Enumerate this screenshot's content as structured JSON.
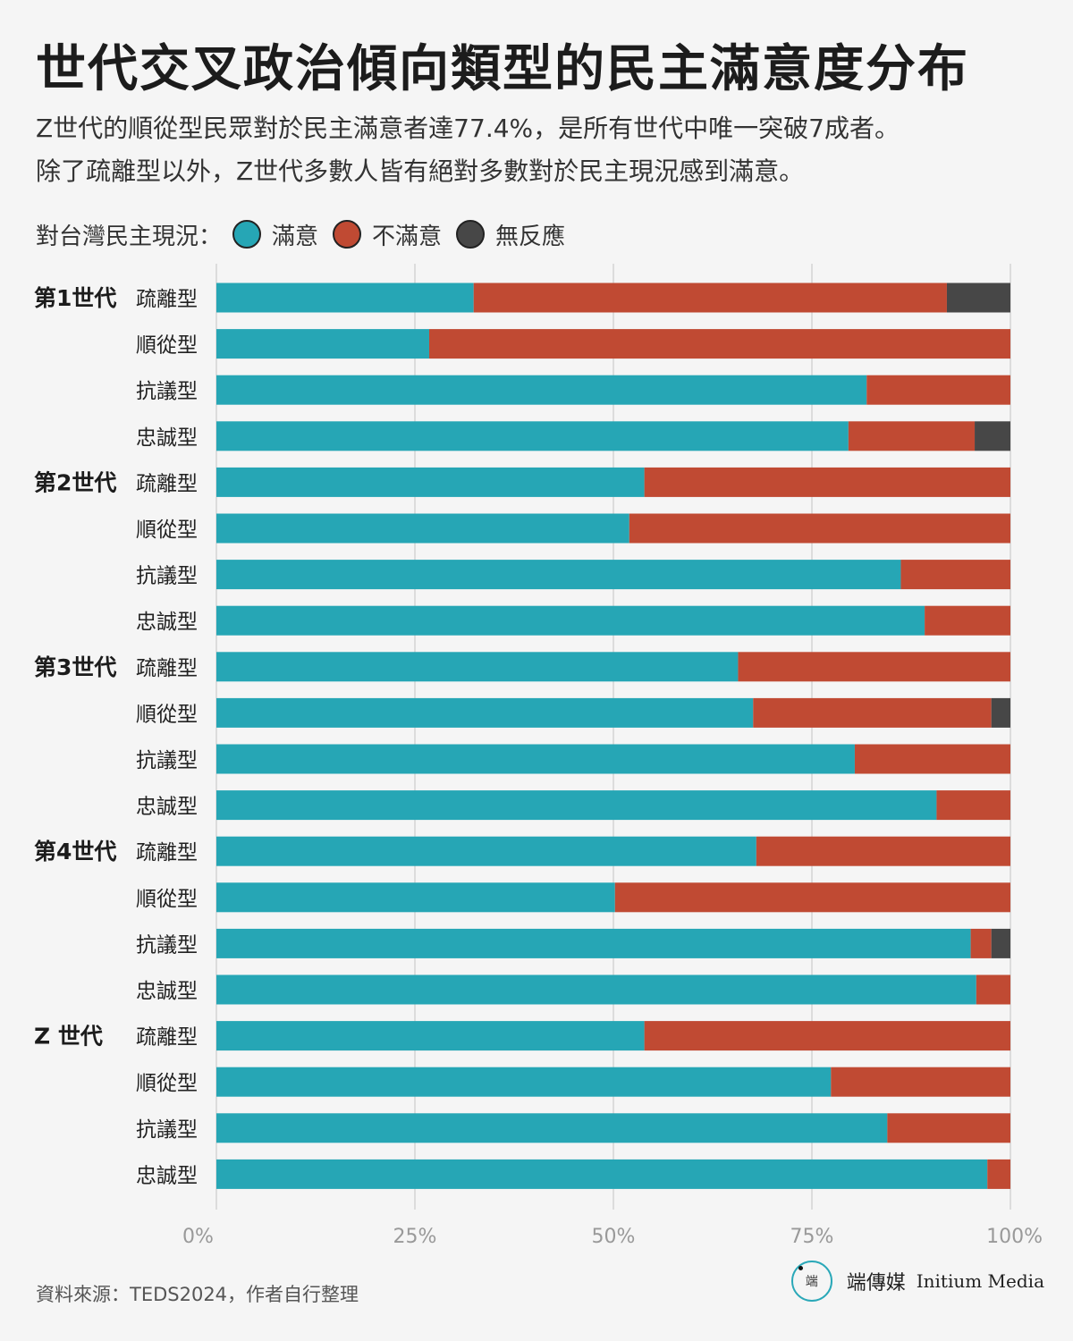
{
  "title": "世代交叉政治傾向類型的民主滿意度分布",
  "subtitle_lines": [
    "Z世代的順從型民眾對於民主滿意者達77.4%，是所有世代中唯一突破7成者。",
    "除了疏離型以外，Z世代多數人皆有絕對多數對於民主現況感到滿意。"
  ],
  "legend": {
    "title": "對台灣民主現況：",
    "items": [
      {
        "label": "滿意",
        "color": "#26a6b5"
      },
      {
        "label": "不滿意",
        "color": "#c04a33"
      },
      {
        "label": "無反應",
        "color": "#474747"
      }
    ]
  },
  "source": "資料來源：TEDS2024，作者自行整理",
  "brand": {
    "mark_text": "端",
    "name_zh": "端傳媒",
    "name_en": "Initium Media"
  },
  "chart_data": {
    "type": "bar",
    "orientation": "horizontal",
    "stacked": true,
    "percent": true,
    "xlim": [
      0,
      100
    ],
    "xticks": [
      "0%",
      "25%",
      "50%",
      "75%",
      "100%"
    ],
    "grid": true,
    "legend_position": "top-left",
    "series": [
      {
        "name": "滿意",
        "color": "#26a6b5"
      },
      {
        "name": "不滿意",
        "color": "#c04a33"
      },
      {
        "name": "無反應",
        "color": "#474747"
      }
    ],
    "groups": [
      {
        "label": "第1世代",
        "rows": [
          {
            "label": "疏離型",
            "values": [
              32.4,
              59.6,
              8.0
            ]
          },
          {
            "label": "順從型",
            "values": [
              26.8,
              73.2,
              0
            ]
          },
          {
            "label": "抗議型",
            "values": [
              81.9,
              18.1,
              0
            ]
          },
          {
            "label": "忠誠型",
            "values": [
              79.6,
              15.9,
              4.5
            ]
          }
        ]
      },
      {
        "label": "第2世代",
        "rows": [
          {
            "label": "疏離型",
            "values": [
              53.9,
              46.1,
              0
            ]
          },
          {
            "label": "順從型",
            "values": [
              52.0,
              48.0,
              0
            ]
          },
          {
            "label": "抗議型",
            "values": [
              86.2,
              13.8,
              0
            ]
          },
          {
            "label": "忠誠型",
            "values": [
              89.2,
              10.8,
              0
            ]
          }
        ]
      },
      {
        "label": "第3世代",
        "rows": [
          {
            "label": "疏離型",
            "values": [
              65.7,
              34.3,
              0
            ]
          },
          {
            "label": "順從型",
            "values": [
              67.6,
              30.0,
              2.4
            ]
          },
          {
            "label": "抗議型",
            "values": [
              80.4,
              19.6,
              0
            ]
          },
          {
            "label": "忠誠型",
            "values": [
              90.7,
              9.3,
              0
            ]
          }
        ]
      },
      {
        "label": "第4世代",
        "rows": [
          {
            "label": "疏離型",
            "values": [
              68.0,
              32.0,
              0
            ]
          },
          {
            "label": "順從型",
            "values": [
              50.2,
              49.8,
              0
            ]
          },
          {
            "label": "抗議型",
            "values": [
              95.0,
              2.6,
              2.4
            ]
          },
          {
            "label": "忠誠型",
            "values": [
              95.7,
              4.3,
              0
            ]
          }
        ]
      },
      {
        "label": "Z 世代",
        "rows": [
          {
            "label": "疏離型",
            "values": [
              53.9,
              46.1,
              0
            ]
          },
          {
            "label": "順從型",
            "values": [
              77.4,
              22.6,
              0
            ]
          },
          {
            "label": "抗議型",
            "values": [
              84.5,
              15.5,
              0
            ]
          },
          {
            "label": "忠誠型",
            "values": [
              97.1,
              2.9,
              0
            ]
          }
        ]
      }
    ]
  }
}
